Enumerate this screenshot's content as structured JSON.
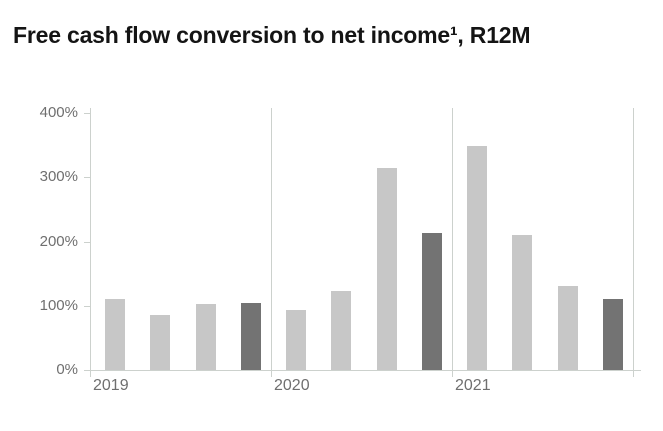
{
  "title": "Free cash flow conversion to net income¹, R12M",
  "colors": {
    "bar_light": "#c7c7c7",
    "bar_dark": "#737373",
    "grid": "#ccd1cd",
    "axis_text": "#6f6f6f",
    "title_text": "#141414",
    "background": "#ffffff"
  },
  "chart_data": {
    "type": "bar",
    "title": "Free cash flow conversion to net income¹, R12M",
    "unit": "%",
    "ylim": [
      0,
      400
    ],
    "yticks": [
      0,
      100,
      200,
      300,
      400
    ],
    "ytick_labels": [
      "0%",
      "100%",
      "200%",
      "300%",
      "400%"
    ],
    "xtick_labels": [
      "2019",
      "2020",
      "2021"
    ],
    "legend_position": "none",
    "grid": "vertical year separators only",
    "groups": [
      {
        "label": "2019",
        "values": [
          110,
          85,
          103,
          105
        ],
        "emphasized_index": 3
      },
      {
        "label": "2020",
        "values": [
          94,
          123,
          315,
          214
        ],
        "emphasized_index": 3
      },
      {
        "label": "2021",
        "values": [
          348,
          210,
          131,
          110
        ],
        "emphasized_index": 3
      }
    ]
  }
}
